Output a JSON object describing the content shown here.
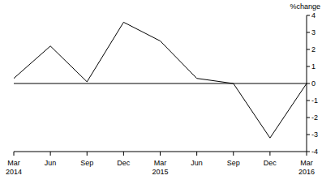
{
  "chart_data": {
    "type": "line",
    "y_label": "%change",
    "categories": [
      "Mar 2014",
      "Jun",
      "Sep",
      "Dec",
      "Mar 2015",
      "Jun",
      "Sep",
      "Dec",
      "Mar 2016"
    ],
    "values": [
      0.3,
      2.2,
      0.1,
      3.6,
      2.5,
      0.3,
      0.0,
      -3.2,
      0.0
    ],
    "color": "#000000",
    "ylim": [
      -4,
      4
    ],
    "yticks": [
      -4,
      -3,
      -2,
      -1,
      0,
      1,
      2,
      3,
      4
    ],
    "grid": false
  }
}
